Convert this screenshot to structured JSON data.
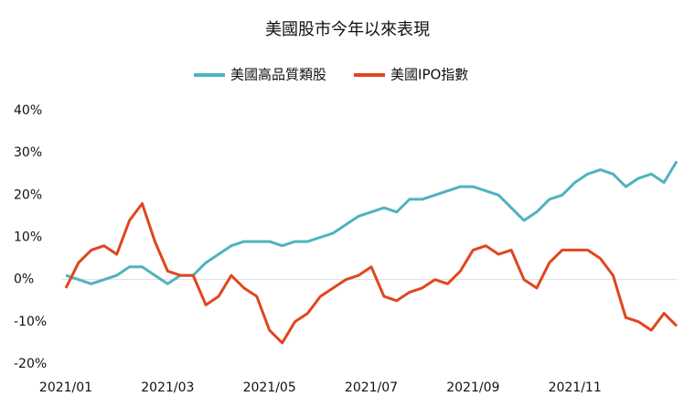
{
  "chart_data": {
    "type": "line",
    "title": "美國股市今年以來表現",
    "categories": [
      "2021/01",
      null,
      null,
      null,
      null,
      null,
      null,
      null,
      "2021/03",
      null,
      null,
      null,
      null,
      null,
      null,
      null,
      "2021/05",
      null,
      null,
      null,
      null,
      null,
      null,
      null,
      "2021/07",
      null,
      null,
      null,
      null,
      null,
      null,
      null,
      "2021/09",
      null,
      null,
      null,
      null,
      null,
      null,
      null,
      "2021/11",
      null,
      null,
      null,
      null,
      null,
      null,
      null,
      null
    ],
    "series": [
      {
        "name": "美國高品質類股",
        "color": "#4fb3bf",
        "values": [
          1,
          0,
          -1,
          0,
          1,
          3,
          3,
          1,
          -1,
          1,
          1,
          4,
          6,
          8,
          9,
          9,
          9,
          8,
          9,
          9,
          10,
          11,
          13,
          15,
          16,
          17,
          16,
          19,
          19,
          20,
          21,
          22,
          22,
          21,
          20,
          17,
          14,
          16,
          19,
          20,
          23,
          25,
          26,
          25,
          22,
          24,
          25,
          23,
          28
        ]
      },
      {
        "name": "美國IPO指數",
        "color": "#e0461e",
        "values": [
          -2,
          4,
          7,
          8,
          6,
          14,
          18,
          9,
          2,
          1,
          1,
          -6,
          -4,
          1,
          -2,
          -4,
          -12,
          -15,
          -10,
          -8,
          -4,
          -2,
          0,
          1,
          3,
          -4,
          -5,
          -3,
          -2,
          0,
          -1,
          2,
          7,
          8,
          6,
          7,
          0,
          -2,
          4,
          7,
          7,
          7,
          5,
          1,
          -9,
          -10,
          -12,
          -8,
          -11
        ]
      }
    ],
    "ylim": [
      -20,
      40
    ],
    "yticks": [
      {
        "value": 40,
        "label": "40%"
      },
      {
        "value": 30,
        "label": "30%"
      },
      {
        "value": 20,
        "label": "20%"
      },
      {
        "value": 10,
        "label": "10%"
      },
      {
        "value": 0,
        "label": "0%"
      },
      {
        "value": -10,
        "label": "-10%"
      },
      {
        "value": -20,
        "label": "-20%"
      }
    ],
    "grid": false,
    "legend": "top"
  }
}
